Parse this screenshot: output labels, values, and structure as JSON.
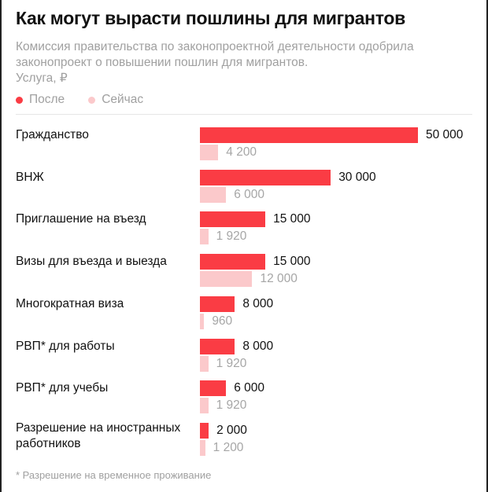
{
  "title": "Как могут вырасти пошлины для мигрантов",
  "subtitle": "Комиссия правительства по законопроектной деятельности одобрила законопроект о повышении пошлин для мигрантов.",
  "unit_label": "Услуга, ₽",
  "footnote": "* Разрешение на временное проживание",
  "colors": {
    "after": "#fa3c44",
    "now": "#fbc9cb",
    "after_text": "#111111",
    "now_text": "#a6a6a6"
  },
  "chart_data": {
    "type": "bar",
    "orientation": "horizontal",
    "categories": [
      "Гражданство",
      "ВНЖ",
      "Приглашение на въезд",
      "Визы для въезда и выезда",
      "Многократная виза",
      "РВП* для работы",
      "РВП* для учебы",
      "Разрешение на иностранных работников"
    ],
    "series": [
      {
        "name": "После",
        "values": [
          50000,
          30000,
          15000,
          15000,
          8000,
          8000,
          6000,
          2000
        ],
        "labels": [
          "50 000",
          "30 000",
          "15 000",
          "15 000",
          "8 000",
          "8 000",
          "6 000",
          "2 000"
        ]
      },
      {
        "name": "Сейчас",
        "values": [
          4200,
          6000,
          1920,
          12000,
          960,
          1920,
          1920,
          1200
        ],
        "labels": [
          "4 200",
          "6 000",
          "1 920",
          "12 000",
          "960",
          "1 920",
          "1 920",
          "1 200"
        ]
      }
    ],
    "xlim": [
      0,
      50000
    ],
    "legend": "top-left",
    "grid": false
  }
}
